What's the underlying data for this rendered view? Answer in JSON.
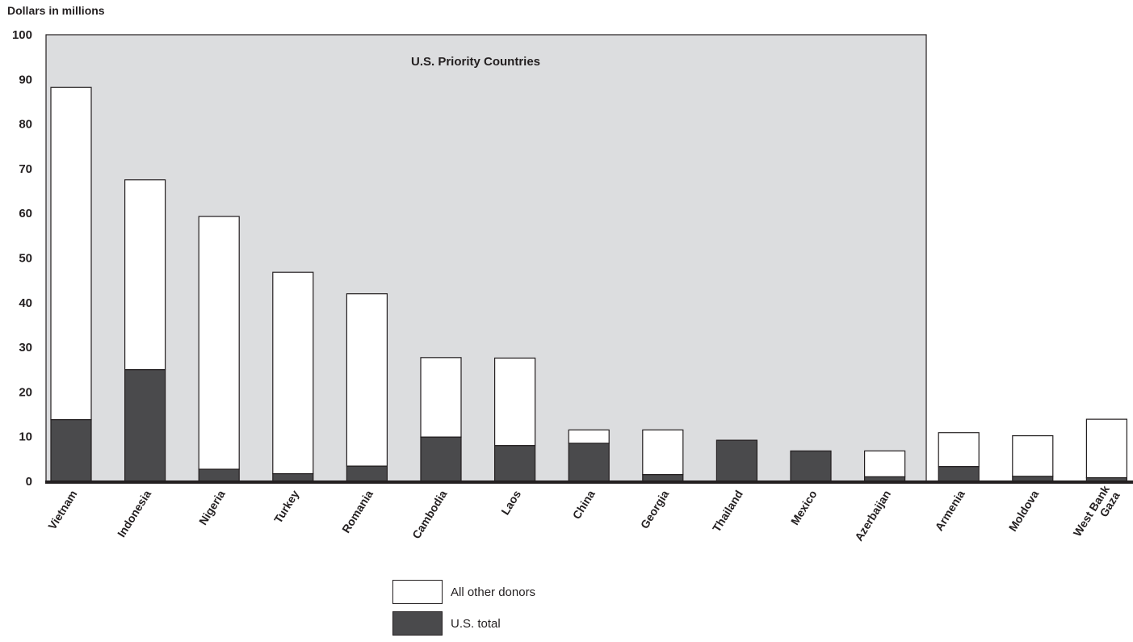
{
  "chart_data": {
    "type": "bar",
    "stacked": true,
    "ylabel": "Dollars in millions",
    "ylim": [
      0,
      100
    ],
    "yticks": [
      0,
      10,
      20,
      30,
      40,
      50,
      60,
      70,
      80,
      90,
      100
    ],
    "annotation": "U.S. Priority Countries",
    "categories": [
      "Vietnam",
      "Indonesia",
      "Nigeria",
      "Turkey",
      "Romania",
      "Cambodia",
      "Laos",
      "China",
      "Georgia",
      "Thailand",
      "Mexico",
      "Azerbaijan",
      "Armenia",
      "Moldova",
      "West Bank\nGaza"
    ],
    "priority_count": 12,
    "series": [
      {
        "name": "U.S. total",
        "color": "#4a4a4c",
        "values": [
          13.8,
          25.0,
          2.7,
          1.7,
          3.4,
          9.9,
          8.0,
          8.5,
          1.5,
          9.2,
          6.8,
          1.0,
          3.3,
          1.1,
          0.8
        ]
      },
      {
        "name": "All other donors",
        "color": "#ffffff",
        "values": [
          74.4,
          42.5,
          56.6,
          45.1,
          38.6,
          17.8,
          19.6,
          3.0,
          10.0,
          0.0,
          0.0,
          5.8,
          7.6,
          9.1,
          13.1
        ]
      }
    ],
    "background_color": "#dcdddf",
    "grid": false,
    "legend_position": "bottom-center"
  }
}
